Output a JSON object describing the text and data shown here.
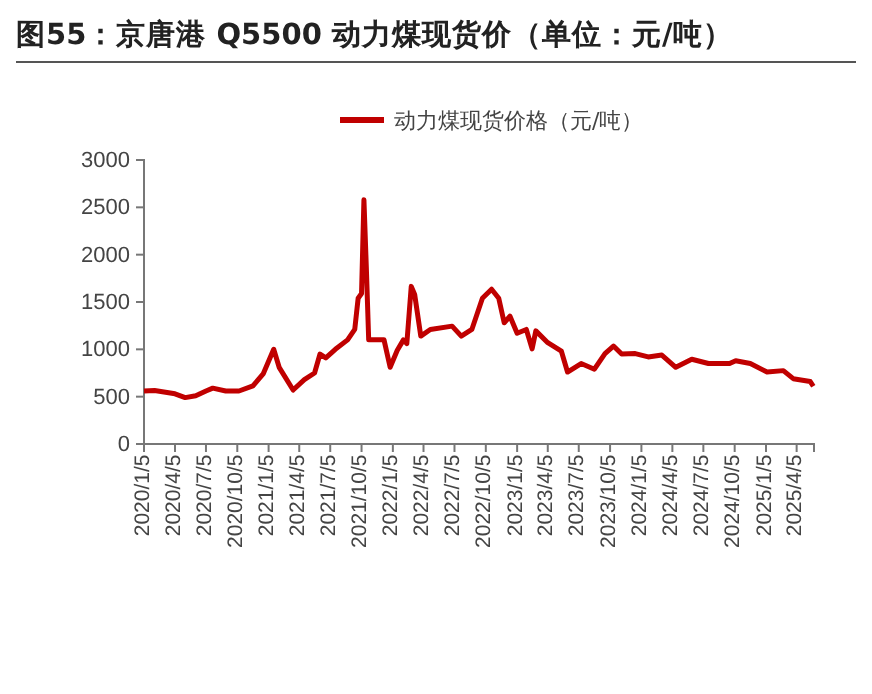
{
  "chart_data": {
    "type": "line",
    "title": "图55：京唐港 Q5500 动力煤现货价（单位：元/吨）",
    "legend": "top",
    "grid": false,
    "marker": "none",
    "line_style": "solid",
    "x": [
      "2020-01-05",
      "2020-02-05",
      "2020-04-05",
      "2020-05-05",
      "2020-06-05",
      "2020-07-05",
      "2020-07-25",
      "2020-09-01",
      "2020-10-10",
      "2020-11-20",
      "2020-12-20",
      "2021-01-20",
      "2021-02-05",
      "2021-03-18",
      "2021-04-20",
      "2021-05-20",
      "2021-06-05",
      "2021-06-22",
      "2021-07-20",
      "2021-08-25",
      "2021-09-15",
      "2021-09-25",
      "2021-10-05",
      "2021-10-12",
      "2021-10-19",
      "2021-10-26",
      "2021-12-10",
      "2021-12-28",
      "2022-01-18",
      "2022-02-05",
      "2022-02-15",
      "2022-02-28",
      "2022-03-10",
      "2022-03-28",
      "2022-04-25",
      "2022-06-28",
      "2022-07-25",
      "2022-08-25",
      "2022-09-25",
      "2022-10-22",
      "2022-11-12",
      "2022-11-28",
      "2022-12-15",
      "2023-01-05",
      "2023-02-01",
      "2023-02-18",
      "2023-03-01",
      "2023-04-05",
      "2023-05-15",
      "2023-06-02",
      "2023-07-12",
      "2023-08-20",
      "2023-09-20",
      "2023-10-15",
      "2023-11-08",
      "2023-12-18",
      "2024-01-25",
      "2024-03-05",
      "2024-04-15",
      "2024-06-01",
      "2024-07-20",
      "2024-09-20",
      "2024-10-08",
      "2024-11-20",
      "2025-01-08",
      "2025-02-25",
      "2025-03-26",
      "2025-05-15",
      "2025-05-24"
    ],
    "series": [
      {
        "name": "动力煤现货价格（元/吨）",
        "color": "#c00000",
        "values": [
          560,
          565,
          530,
          490,
          510,
          560,
          590,
          560,
          560,
          613,
          740,
          1000,
          810,
          570,
          680,
          750,
          950,
          910,
          1000,
          1100,
          1210,
          1540,
          1590,
          2580,
          1870,
          1100,
          1100,
          810,
          990,
          1100,
          1060,
          1665,
          1580,
          1140,
          1210,
          1245,
          1140,
          1210,
          1540,
          1635,
          1540,
          1280,
          1350,
          1170,
          1210,
          1005,
          1195,
          1070,
          980,
          760,
          850,
          790,
          955,
          1035,
          950,
          955,
          920,
          940,
          810,
          895,
          850,
          850,
          880,
          850,
          760,
          775,
          690,
          660,
          610
        ]
      }
    ],
    "xlim": [
      "2020-01-05",
      "2025-05-26"
    ],
    "xticks": [
      {
        "value": "2020-01-05",
        "label": "2020/1/5"
      },
      {
        "value": "2020-04-05",
        "label": "2020/4/5"
      },
      {
        "value": "2020-07-05",
        "label": "2020/7/5"
      },
      {
        "value": "2020-10-05",
        "label": "2020/10/5"
      },
      {
        "value": "2021-01-05",
        "label": "2021/1/5"
      },
      {
        "value": "2021-04-05",
        "label": "2021/4/5"
      },
      {
        "value": "2021-07-05",
        "label": "2021/7/5"
      },
      {
        "value": "2021-10-05",
        "label": "2021/10/5"
      },
      {
        "value": "2022-01-05",
        "label": "2022/1/5"
      },
      {
        "value": "2022-04-05",
        "label": "2022/4/5"
      },
      {
        "value": "2022-07-05",
        "label": "2022/7/5"
      },
      {
        "value": "2022-10-05",
        "label": "2022/10/5"
      },
      {
        "value": "2023-01-05",
        "label": "2023/1/5"
      },
      {
        "value": "2023-04-05",
        "label": "2023/4/5"
      },
      {
        "value": "2023-07-05",
        "label": "2023/7/5"
      },
      {
        "value": "2023-10-05",
        "label": "2023/10/5"
      },
      {
        "value": "2024-01-05",
        "label": "2024/1/5"
      },
      {
        "value": "2024-04-05",
        "label": "2024/4/5"
      },
      {
        "value": "2024-07-05",
        "label": "2024/7/5"
      },
      {
        "value": "2024-10-05",
        "label": "2024/10/5"
      },
      {
        "value": "2025-01-05",
        "label": "2025/1/5"
      },
      {
        "value": "2025-04-05",
        "label": "2025/4/5"
      }
    ],
    "ylim": [
      0,
      3000
    ],
    "yticks": [
      0,
      500,
      1000,
      1500,
      2000,
      2500,
      3000
    ]
  }
}
